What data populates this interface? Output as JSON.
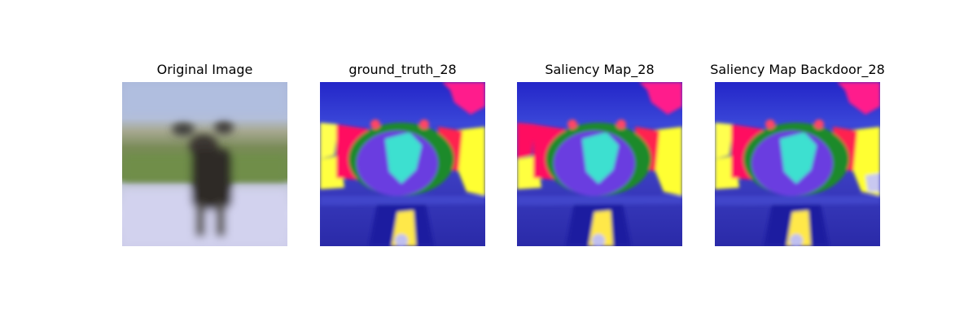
{
  "panels": [
    {
      "title": "Original Image"
    },
    {
      "title": "ground_truth_28"
    },
    {
      "title": "Saliency Map_28"
    },
    {
      "title": "Saliency Map Backdoor_28"
    }
  ]
}
